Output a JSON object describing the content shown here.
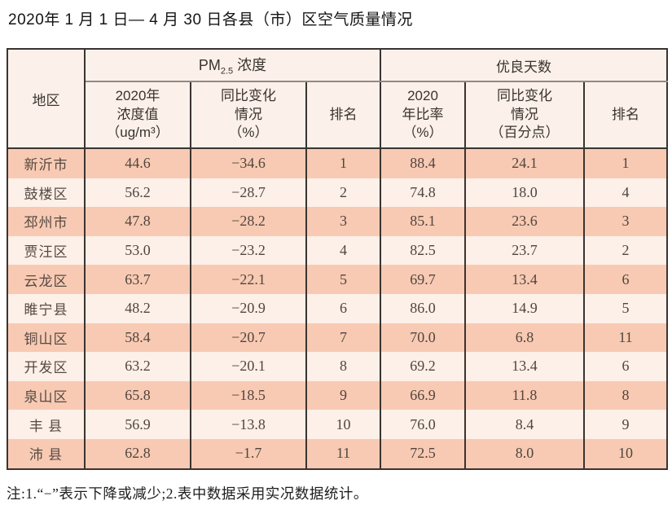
{
  "title": "2020年 1 月 1 日— 4 月 30 日各县（市）区空气质量情况",
  "table": {
    "corner_header": "地区",
    "group_headers": {
      "pm": {
        "prefix": "PM",
        "sub": "2.5",
        "suffix": " 浓度"
      },
      "days": "优良天数"
    },
    "sub_headers": {
      "pm_value": "2020年\n浓度值\n（ug/m³）",
      "pm_change": "同比变化\n情况\n（%）",
      "pm_rank": "排名",
      "days_rate": "2020\n年比率\n（%）",
      "days_change": "同比变化\n情况\n（百分点）",
      "days_rank": "排名"
    },
    "rows": [
      [
        "新沂市",
        "44.6",
        "−34.6",
        "1",
        "88.4",
        "24.1",
        "1"
      ],
      [
        "鼓楼区",
        "56.2",
        "−28.7",
        "2",
        "74.8",
        "18.0",
        "4"
      ],
      [
        "邳州市",
        "47.8",
        "−28.2",
        "3",
        "85.1",
        "23.6",
        "3"
      ],
      [
        "贾汪区",
        "53.0",
        "−23.2",
        "4",
        "82.5",
        "23.7",
        "2"
      ],
      [
        "云龙区",
        "63.7",
        "−22.1",
        "5",
        "69.7",
        "13.4",
        "6"
      ],
      [
        "睢宁县",
        "48.2",
        "−20.9",
        "6",
        "86.0",
        "14.9",
        "5"
      ],
      [
        "铜山区",
        "58.4",
        "−20.7",
        "7",
        "70.0",
        "6.8",
        "11"
      ],
      [
        "开发区",
        "63.2",
        "−20.1",
        "8",
        "69.2",
        "13.4",
        "6"
      ],
      [
        "泉山区",
        "65.8",
        "−18.5",
        "9",
        "66.9",
        "11.8",
        "8"
      ],
      [
        "丰 县",
        "56.9",
        "−13.8",
        "10",
        "76.0",
        "8.4",
        "9"
      ],
      [
        "沛 县",
        "62.8",
        "−1.7",
        "11",
        "72.5",
        "8.0",
        "10"
      ]
    ]
  },
  "note": "注:1.“−”表示下降或减少;2.表中数据采用实况数据统计。",
  "colors": {
    "row_odd": "#f8cab3",
    "row_even": "#fcf0e8",
    "header_bg": "#fbf1ea",
    "border_dark": "#3b3330",
    "border_gray": "#948a84"
  }
}
